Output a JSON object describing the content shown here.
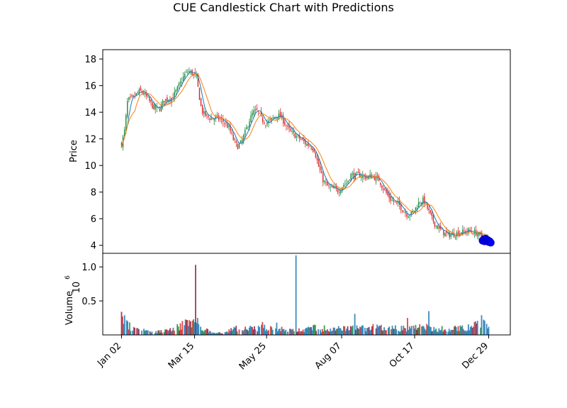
{
  "chart_data": [
    {
      "type": "candlestick",
      "title": "CUE Candlestick Chart with Predictions",
      "ylabel": "Price",
      "ylim": [
        3.4,
        18.7
      ],
      "yticks": [
        4,
        6,
        8,
        10,
        12,
        14,
        16,
        18
      ],
      "xticks": [
        "Jan 02",
        "Mar 15",
        "May 25",
        "Aug 07",
        "Oct 17",
        "Dec 29"
      ],
      "x_range_days": [
        0,
        362
      ],
      "xtick_days": [
        0,
        72,
        143,
        217,
        289,
        362
      ],
      "grid": false,
      "colors": {
        "up": "#1a8a3a",
        "down": "#d62728",
        "ma_short": "#1f77b4",
        "ma_long": "#ff7f0e",
        "prediction": "#0000ff"
      },
      "price_path": [
        [
          0,
          11.6
        ],
        [
          3,
          12.6
        ],
        [
          6,
          14.9
        ],
        [
          10,
          15.0
        ],
        [
          14,
          15.3
        ],
        [
          18,
          15.6
        ],
        [
          22,
          15.4
        ],
        [
          26,
          15.0
        ],
        [
          30,
          14.5
        ],
        [
          34,
          14.2
        ],
        [
          38,
          14.3
        ],
        [
          42,
          14.9
        ],
        [
          46,
          15.0
        ],
        [
          50,
          15.1
        ],
        [
          54,
          15.6
        ],
        [
          58,
          16.2
        ],
        [
          62,
          16.8
        ],
        [
          66,
          17.1
        ],
        [
          70,
          16.9
        ],
        [
          74,
          16.6
        ],
        [
          76,
          15.5
        ],
        [
          79,
          14.1
        ],
        [
          82,
          13.8
        ],
        [
          86,
          13.6
        ],
        [
          90,
          13.5
        ],
        [
          94,
          13.6
        ],
        [
          98,
          13.4
        ],
        [
          102,
          13.2
        ],
        [
          106,
          12.8
        ],
        [
          110,
          12.0
        ],
        [
          114,
          11.4
        ],
        [
          118,
          11.7
        ],
        [
          122,
          12.5
        ],
        [
          126,
          13.4
        ],
        [
          130,
          14.0
        ],
        [
          134,
          14.1
        ],
        [
          138,
          13.5
        ],
        [
          142,
          13.2
        ],
        [
          146,
          13.3
        ],
        [
          150,
          13.6
        ],
        [
          154,
          13.8
        ],
        [
          158,
          13.6
        ],
        [
          162,
          13.0
        ],
        [
          166,
          12.6
        ],
        [
          170,
          12.3
        ],
        [
          174,
          12.1
        ],
        [
          178,
          11.9
        ],
        [
          182,
          11.6
        ],
        [
          186,
          11.5
        ],
        [
          190,
          11.2
        ],
        [
          194,
          10.0
        ],
        [
          198,
          9.0
        ],
        [
          202,
          8.5
        ],
        [
          206,
          8.3
        ],
        [
          210,
          8.2
        ],
        [
          214,
          8.1
        ],
        [
          218,
          8.5
        ],
        [
          222,
          8.7
        ],
        [
          226,
          9.3
        ],
        [
          230,
          9.2
        ],
        [
          234,
          9.3
        ],
        [
          238,
          9.2
        ],
        [
          242,
          9.1
        ],
        [
          246,
          9.2
        ],
        [
          250,
          9.1
        ],
        [
          254,
          8.9
        ],
        [
          258,
          8.3
        ],
        [
          262,
          7.8
        ],
        [
          266,
          7.4
        ],
        [
          270,
          7.2
        ],
        [
          274,
          7.0
        ],
        [
          278,
          6.6
        ],
        [
          282,
          6.3
        ],
        [
          286,
          6.4
        ],
        [
          290,
          6.8
        ],
        [
          294,
          7.3
        ],
        [
          298,
          7.4
        ],
        [
          302,
          6.7
        ],
        [
          306,
          6.0
        ],
        [
          310,
          5.5
        ],
        [
          314,
          5.2
        ],
        [
          318,
          4.9
        ],
        [
          322,
          4.8
        ],
        [
          326,
          4.8
        ],
        [
          330,
          4.9
        ],
        [
          334,
          5.0
        ],
        [
          338,
          5.0
        ],
        [
          342,
          5.1
        ],
        [
          346,
          5.0
        ],
        [
          350,
          4.9
        ],
        [
          354,
          4.7
        ],
        [
          358,
          4.5
        ],
        [
          362,
          4.5
        ]
      ],
      "predictions": {
        "x_days": [
          356,
          357,
          358,
          359,
          360,
          361,
          362,
          363,
          364
        ],
        "values": [
          4.35,
          4.45,
          4.3,
          4.5,
          4.35,
          4.4,
          4.25,
          4.3,
          4.2
        ]
      }
    },
    {
      "type": "bar",
      "ylabel": "Volume",
      "scale_label": "10^6",
      "yticks": [
        0.5,
        1.0
      ],
      "ylim": [
        0,
        1.2
      ],
      "volume_baseline": [
        [
          0,
          0.3
        ],
        [
          10,
          0.09
        ],
        [
          20,
          0.07
        ],
        [
          30,
          0.05
        ],
        [
          40,
          0.05
        ],
        [
          50,
          0.09
        ],
        [
          60,
          0.15
        ],
        [
          70,
          0.2
        ],
        [
          80,
          0.1
        ],
        [
          90,
          0.03
        ],
        [
          100,
          0.03
        ],
        [
          110,
          0.1
        ],
        [
          120,
          0.1
        ],
        [
          130,
          0.1
        ],
        [
          140,
          0.11
        ],
        [
          150,
          0.1
        ],
        [
          160,
          0.07
        ],
        [
          170,
          0.07
        ],
        [
          180,
          0.08
        ],
        [
          190,
          0.11
        ],
        [
          200,
          0.06
        ],
        [
          210,
          0.08
        ],
        [
          220,
          0.1
        ],
        [
          230,
          0.11
        ],
        [
          240,
          0.1
        ],
        [
          250,
          0.11
        ],
        [
          260,
          0.11
        ],
        [
          270,
          0.1
        ],
        [
          280,
          0.1
        ],
        [
          290,
          0.11
        ],
        [
          300,
          0.12
        ],
        [
          310,
          0.08
        ],
        [
          320,
          0.07
        ],
        [
          330,
          0.1
        ],
        [
          340,
          0.1
        ],
        [
          350,
          0.16
        ],
        [
          356,
          0.2
        ],
        [
          362,
          0.12
        ]
      ],
      "volume_spikes": [
        [
          0,
          0.34
        ],
        [
          1,
          0.27
        ],
        [
          3,
          0.29
        ],
        [
          58,
          0.17
        ],
        [
          68,
          0.2
        ],
        [
          71,
          0.23
        ],
        [
          73,
          1.03
        ],
        [
          75,
          0.25
        ],
        [
          118,
          0.1
        ],
        [
          139,
          0.19
        ],
        [
          147,
          0.13
        ],
        [
          153,
          0.18
        ],
        [
          158,
          0.12
        ],
        [
          172,
          1.17
        ],
        [
          200,
          0.14
        ],
        [
          214,
          0.13
        ],
        [
          230,
          0.31
        ],
        [
          238,
          0.14
        ],
        [
          248,
          0.16
        ],
        [
          262,
          0.14
        ],
        [
          270,
          0.14
        ],
        [
          282,
          0.25
        ],
        [
          303,
          0.35
        ],
        [
          316,
          0.13
        ],
        [
          336,
          0.14
        ],
        [
          348,
          0.19
        ],
        [
          355,
          0.29
        ],
        [
          358,
          0.21
        ]
      ]
    }
  ]
}
